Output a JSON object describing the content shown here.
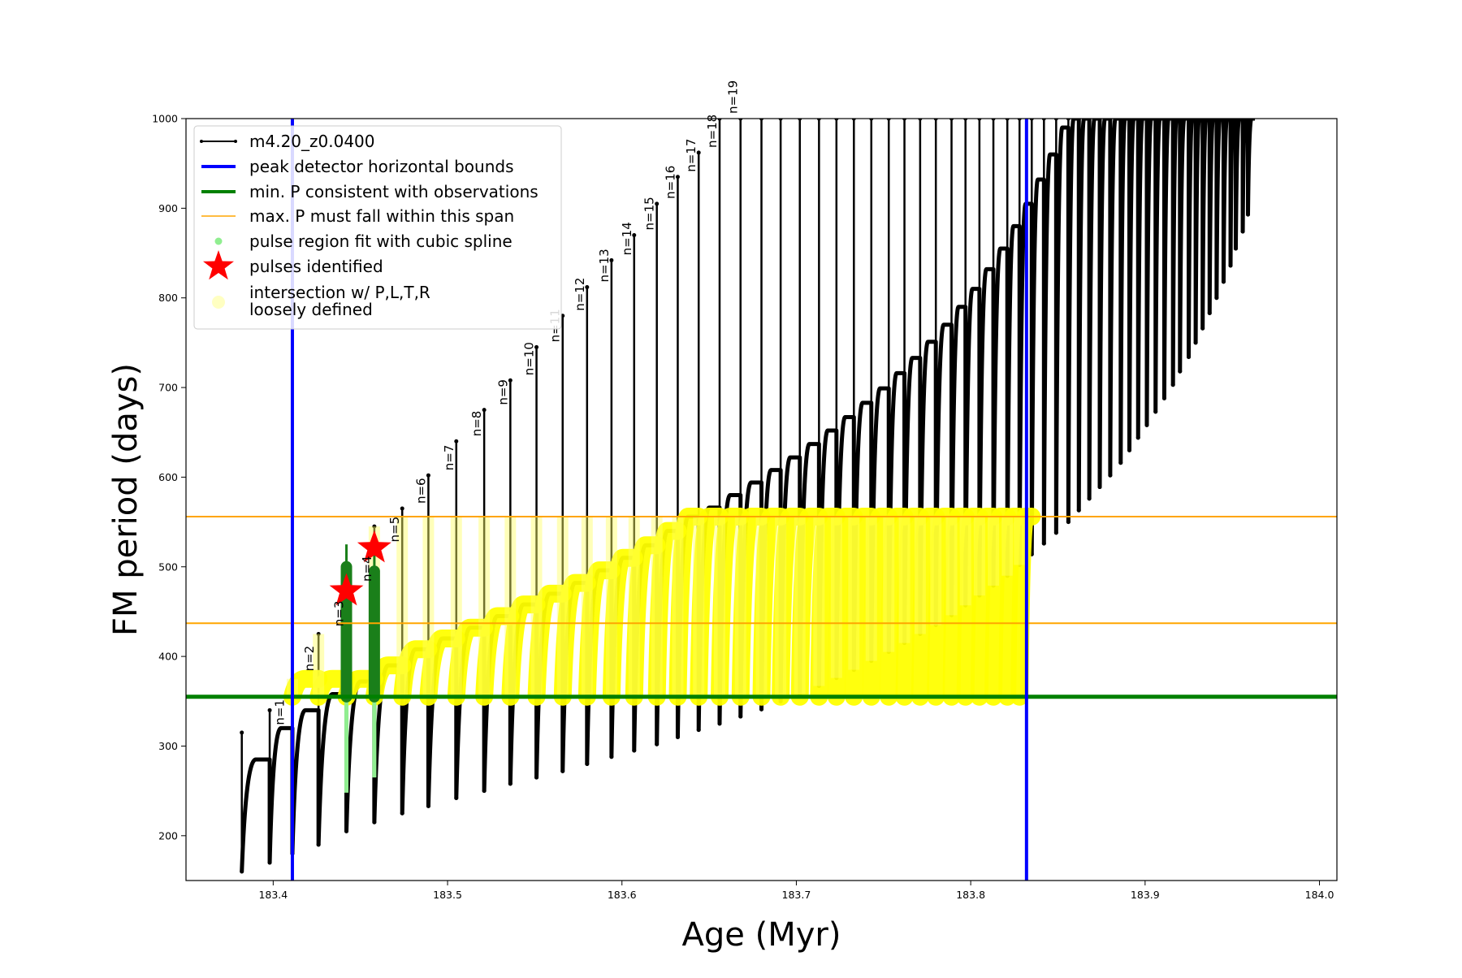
{
  "chart_data": {
    "type": "scatter",
    "xlabel": "Age (Myr)",
    "ylabel": "FM period (days)",
    "xlim": [
      183.35,
      184.01
    ],
    "ylim": [
      150,
      1000
    ],
    "xticks": [
      183.4,
      183.5,
      183.6,
      183.7,
      183.8,
      183.9,
      184.0
    ],
    "yticks": [
      200,
      300,
      400,
      500,
      600,
      700,
      800,
      900,
      1000
    ],
    "xtick_labels": [
      "183.4",
      "183.5",
      "183.6",
      "183.7",
      "183.8",
      "183.9",
      "184.0"
    ],
    "ytick_labels": [
      "200",
      "300",
      "400",
      "500",
      "600",
      "700",
      "800",
      "900",
      "1000"
    ],
    "grid": false,
    "legend_position": "top-left",
    "legend": [
      {
        "label": "m4.20_z0.0400",
        "color": "#000000",
        "marker": "line-dot"
      },
      {
        "label": "peak detector horizontal bounds",
        "color": "#0000ff",
        "marker": "line-thick"
      },
      {
        "label": "min. P consistent with observations",
        "color": "#008000",
        "marker": "line-thick"
      },
      {
        "label": "max. P must fall within this span",
        "color": "#ffa500",
        "marker": "line-thin"
      },
      {
        "label": "pulse region fit with cubic spline",
        "color": "#90ee90",
        "marker": "dot"
      },
      {
        "label": "pulses identified",
        "color": "#ff0000",
        "marker": "star"
      },
      {
        "label": "intersection w/ P,L,T,R\nloosely defined",
        "color": "#ffff99",
        "marker": "circle"
      }
    ],
    "vertical_lines": [
      {
        "x": 183.411,
        "color": "#0000ff"
      },
      {
        "x": 183.832,
        "color": "#0000ff"
      }
    ],
    "horizontal_lines": [
      {
        "y": 355,
        "color": "#008000",
        "name": "min. P consistent with observations"
      },
      {
        "y": 556,
        "color": "#ffa500",
        "name": "max span upper"
      },
      {
        "y": 437,
        "color": "#ffa500",
        "name": "max span lower"
      }
    ],
    "pulse_labels": [
      {
        "text": "n=1",
        "x": 183.408,
        "y": 318
      },
      {
        "text": "n=2",
        "x": 183.425,
        "y": 378
      },
      {
        "text": "n=3",
        "x": 183.442,
        "y": 428
      },
      {
        "text": "n=4",
        "x": 183.458,
        "y": 478
      },
      {
        "text": "n=5",
        "x": 183.474,
        "y": 522
      },
      {
        "text": "n=6",
        "x": 183.489,
        "y": 565
      },
      {
        "text": "n=7",
        "x": 183.505,
        "y": 602
      },
      {
        "text": "n=8",
        "x": 183.521,
        "y": 640
      },
      {
        "text": "n=9",
        "x": 183.536,
        "y": 675
      },
      {
        "text": "n=10",
        "x": 183.551,
        "y": 708
      },
      {
        "text": "n=11",
        "x": 183.566,
        "y": 745
      },
      {
        "text": "n=12",
        "x": 183.58,
        "y": 780
      },
      {
        "text": "n=13",
        "x": 183.594,
        "y": 812
      },
      {
        "text": "n=14",
        "x": 183.607,
        "y": 842
      },
      {
        "text": "n=15",
        "x": 183.62,
        "y": 870
      },
      {
        "text": "n=16",
        "x": 183.632,
        "y": 905
      },
      {
        "text": "n=17",
        "x": 183.644,
        "y": 935
      },
      {
        "text": "n=18",
        "x": 183.656,
        "y": 962
      },
      {
        "text": "n=19",
        "x": 183.668,
        "y": 1000
      }
    ],
    "pulses_identified": [
      {
        "x": 183.442,
        "y": 473
      },
      {
        "x": 183.458,
        "y": 521
      }
    ],
    "series": [
      {
        "name": "m4.20_z0.0400",
        "pulse_ages": [
          183.382,
          183.398,
          183.411,
          183.426,
          183.442,
          183.458,
          183.474,
          183.489,
          183.505,
          183.521,
          183.536,
          183.551,
          183.566,
          183.58,
          183.594,
          183.607,
          183.62,
          183.632,
          183.644,
          183.656,
          183.668,
          183.68,
          183.691,
          183.702,
          183.713,
          183.723,
          183.733,
          183.743,
          183.753,
          183.762,
          183.771,
          183.78,
          183.789,
          183.797,
          183.805,
          183.813,
          183.821,
          183.828,
          183.835,
          183.842,
          183.849,
          183.856,
          183.862,
          183.868,
          183.874,
          183.88,
          183.886,
          183.891,
          183.896,
          183.901,
          183.906,
          183.911,
          183.916,
          183.92,
          183.925,
          183.929,
          183.933,
          183.937,
          183.941,
          183.945,
          183.949,
          183.952,
          183.956,
          183.959
        ],
        "min_period": [
          160,
          170,
          180,
          190,
          205,
          215,
          225,
          233,
          242,
          250,
          258,
          265,
          272,
          280,
          288,
          295,
          302,
          310,
          318,
          325,
          333,
          341,
          350,
          358,
          367,
          376,
          385,
          395,
          405,
          415,
          425,
          435,
          446,
          457,
          468,
          479,
          490,
          502,
          514,
          526,
          538,
          550,
          563,
          576,
          589,
          602,
          616,
          630,
          644,
          658,
          673,
          688,
          703,
          718,
          734,
          750,
          766,
          783,
          800,
          818,
          836,
          855,
          874,
          893
        ],
        "max_period": [
          315,
          340,
          375,
          425,
          490,
          545,
          565,
          602,
          640,
          675,
          708,
          745,
          780,
          812,
          842,
          870,
          905,
          935,
          962,
          1000,
          1000,
          1000,
          1000,
          1000,
          1000,
          1000,
          1000,
          1000,
          1000,
          1000,
          1000,
          1000,
          1000,
          1000,
          1000,
          1000,
          1000,
          1000,
          1000,
          1000,
          1000,
          1000,
          1000,
          1000,
          1000,
          1000,
          1000,
          1000,
          1000,
          1000,
          1000,
          1000,
          1000,
          1000,
          1000,
          1000,
          1000,
          1000,
          1000,
          1000,
          1000,
          1000,
          1000,
          1000
        ],
        "hump_top": [
          285,
          320,
          340,
          358,
          372,
          390,
          408,
          420,
          432,
          445,
          458,
          470,
          482,
          496,
          510,
          524,
          540,
          556,
          566,
          580,
          594,
          608,
          622,
          637,
          652,
          667,
          683,
          699,
          716,
          733,
          751,
          770,
          790,
          810,
          832,
          855,
          880,
          905,
          932,
          960,
          990,
          1000,
          1000,
          1000,
          1000,
          1000,
          1000,
          1000,
          1000,
          1000,
          1000,
          1000,
          1000,
          1000,
          1000,
          1000,
          1000,
          1000,
          1000,
          1000,
          1000,
          1000,
          1000,
          1000
        ]
      },
      {
        "name": "pulse region fit with cubic spline",
        "pulse_ages": [
          183.442,
          183.458
        ],
        "min_period": [
          248,
          265
        ],
        "max_period": [
          525,
          520
        ]
      },
      {
        "name": "intersection w/ P,L,T,R loosely defined",
        "x_range": [
          183.411,
          183.832
        ],
        "y_range": [
          355,
          556
        ]
      }
    ]
  }
}
